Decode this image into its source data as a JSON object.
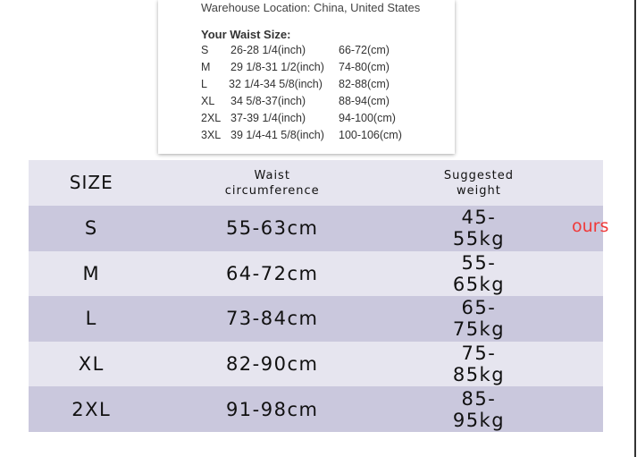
{
  "popup": {
    "top_text": "Warehouse Location: China, United States",
    "title": "Your Waist Size:",
    "rows": [
      {
        "size": "S",
        "inch": "26-28 1/4(inch)",
        "cm": "66-72(cm)"
      },
      {
        "size": "M",
        "inch": "29 1/8-31 1/2(inch)",
        "cm": "74-80(cm)"
      },
      {
        "size": "L",
        "inch": "32 1/4-34 5/8(inch)",
        "cm": "82-88(cm)"
      },
      {
        "size": "XL",
        "inch": "34 5/8-37(inch)",
        "cm": "88-94(cm)"
      },
      {
        "size": "2XL",
        "inch": "37-39 1/4(inch)",
        "cm": "94-100(cm)"
      },
      {
        "size": "3XL",
        "inch": "39 1/4-41 5/8(inch)",
        "cm": "100-106(cm)"
      }
    ]
  },
  "table": {
    "headers": [
      "SIZE",
      "Waist circumference",
      "Suggested weight"
    ],
    "rows": [
      [
        "S",
        "55-63cm",
        "45-55kg"
      ],
      [
        "M",
        "64-72cm",
        "55-65kg"
      ],
      [
        "L",
        "73-84cm",
        "65-75kg"
      ],
      [
        "XL",
        "82-90cm",
        "75-85kg"
      ],
      [
        "2XL",
        "91-98cm",
        "85-95kg"
      ]
    ]
  },
  "overlay_text": "ours"
}
